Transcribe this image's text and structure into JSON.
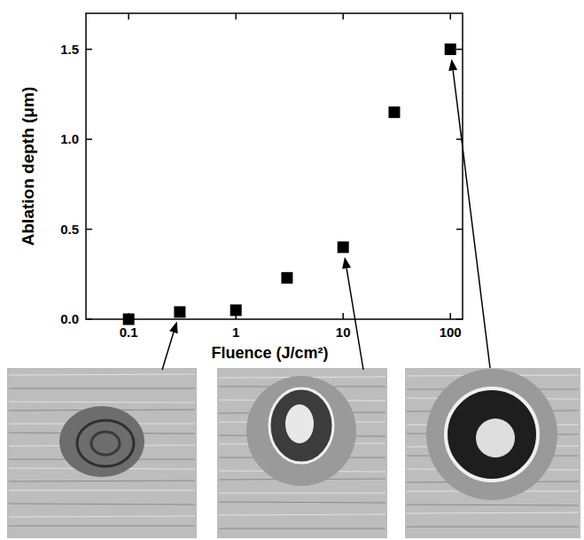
{
  "chart_data": {
    "type": "scatter",
    "x_label": "Fluence (J/cm²)",
    "y_label": "Ablation depth (μm)",
    "x": [
      0.1,
      0.3,
      1,
      3,
      10,
      30,
      100
    ],
    "values": [
      0.0,
      0.04,
      0.05,
      0.23,
      0.4,
      1.15,
      1.5
    ],
    "color": "#000000",
    "marker": "square",
    "log": "x",
    "xlim": [
      0.04,
      130
    ],
    "xticks": [
      0.1,
      1,
      10,
      100
    ],
    "ylim": [
      0,
      1.7
    ],
    "yticks": [
      {
        "value": 0,
        "label": "0.0"
      },
      0.5,
      {
        "value": 1,
        "label": "1.0"
      },
      {
        "value": 1.5,
        "label": "1.5"
      }
    ],
    "grid": false
  }
}
